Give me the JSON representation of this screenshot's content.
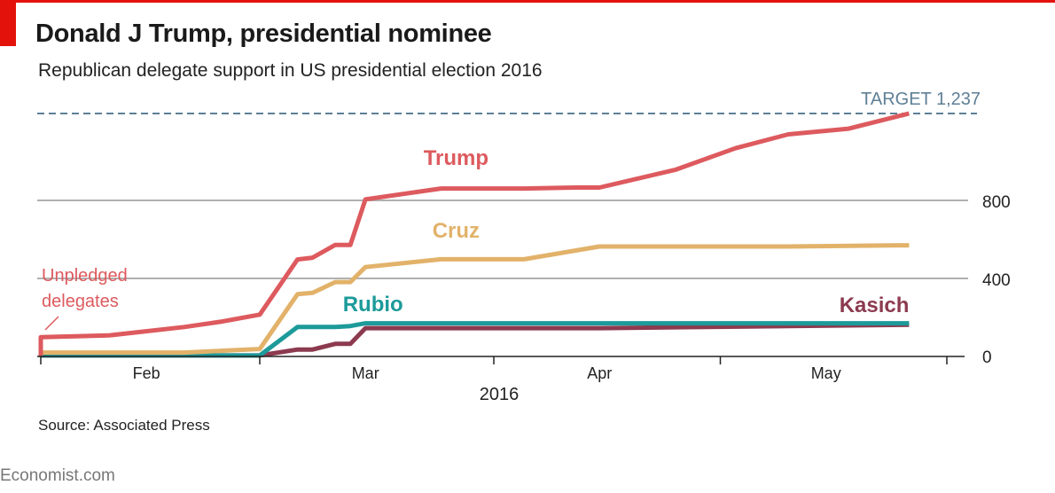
{
  "header": {
    "title": "Donald J Trump, presidential nominee",
    "subtitle": "Republican delegate support in US presidential election 2016"
  },
  "footer": {
    "source": "Source: Associated Press",
    "logo": "Economist.com"
  },
  "colors": {
    "brand_red": "#e3120b",
    "trump": "#dd5a5e",
    "cruz": "#e2b26a",
    "rubio": "#1d9a9a",
    "kasich": "#8c3a4f",
    "target": "#5e7f95",
    "grid": "#b0b0b0"
  },
  "chart_data": {
    "type": "line",
    "title": "Donald J Trump, presidential nominee",
    "subtitle": "Republican delegate support in US presidential election 2016",
    "xlabel": "2016",
    "ylabel": "",
    "ylim": [
      0,
      1237
    ],
    "yticks": [
      "0",
      "400",
      "800"
    ],
    "ytick_values": [
      0,
      400,
      800
    ],
    "xtick_labels": [
      "Feb",
      "Mar",
      "Apr",
      "May"
    ],
    "xtick_dates": [
      "2016-02-15",
      "2016-03-15",
      "2016-04-15",
      "2016-05-15"
    ],
    "xlim": [
      "2016-02-01",
      "2016-05-31"
    ],
    "grid": true,
    "target": {
      "label": "TARGET 1,237",
      "value": 1237
    },
    "annotation": {
      "text": [
        "Unpledged",
        "delegates"
      ]
    },
    "series": [
      {
        "name": "Trump",
        "color": "#dd5a5e",
        "points": [
          [
            "2016-02-01",
            0
          ],
          [
            "2016-02-01",
            98
          ],
          [
            "2016-02-10",
            107
          ],
          [
            "2016-02-20",
            150
          ],
          [
            "2016-02-25",
            178
          ],
          [
            "2016-03-01",
            213
          ],
          [
            "2016-03-06",
            494
          ],
          [
            "2016-03-08",
            503
          ],
          [
            "2016-03-11",
            568
          ],
          [
            "2016-03-13",
            568
          ],
          [
            "2016-03-15",
            800
          ],
          [
            "2016-03-25",
            855
          ],
          [
            "2016-04-05",
            855
          ],
          [
            "2016-04-12",
            860
          ],
          [
            "2016-04-15",
            860
          ],
          [
            "2016-04-25",
            950
          ],
          [
            "2016-05-03",
            1060
          ],
          [
            "2016-05-10",
            1131
          ],
          [
            "2016-05-18",
            1160
          ],
          [
            "2016-05-26",
            1237
          ]
        ]
      },
      {
        "name": "Cruz",
        "color": "#e2b26a",
        "points": [
          [
            "2016-02-01",
            20
          ],
          [
            "2016-02-20",
            20
          ],
          [
            "2016-03-01",
            38
          ],
          [
            "2016-03-06",
            317
          ],
          [
            "2016-03-08",
            324
          ],
          [
            "2016-03-11",
            379
          ],
          [
            "2016-03-13",
            379
          ],
          [
            "2016-03-15",
            455
          ],
          [
            "2016-03-25",
            495
          ],
          [
            "2016-04-05",
            495
          ],
          [
            "2016-04-15",
            560
          ],
          [
            "2016-05-10",
            560
          ],
          [
            "2016-05-26",
            566
          ]
        ]
      },
      {
        "name": "Rubio",
        "color": "#1d9a9a",
        "points": [
          [
            "2016-02-01",
            5
          ],
          [
            "2016-03-01",
            5
          ],
          [
            "2016-03-06",
            150
          ],
          [
            "2016-03-08",
            150
          ],
          [
            "2016-03-11",
            150
          ],
          [
            "2016-03-13",
            155
          ],
          [
            "2016-03-15",
            169
          ],
          [
            "2016-05-26",
            169
          ]
        ]
      },
      {
        "name": "Kasich",
        "color": "#8c3a4f",
        "points": [
          [
            "2016-02-01",
            5
          ],
          [
            "2016-03-01",
            5
          ],
          [
            "2016-03-06",
            35
          ],
          [
            "2016-03-08",
            35
          ],
          [
            "2016-03-11",
            64
          ],
          [
            "2016-03-13",
            64
          ],
          [
            "2016-03-15",
            144
          ],
          [
            "2016-04-15",
            144
          ],
          [
            "2016-05-26",
            161
          ]
        ]
      }
    ]
  }
}
